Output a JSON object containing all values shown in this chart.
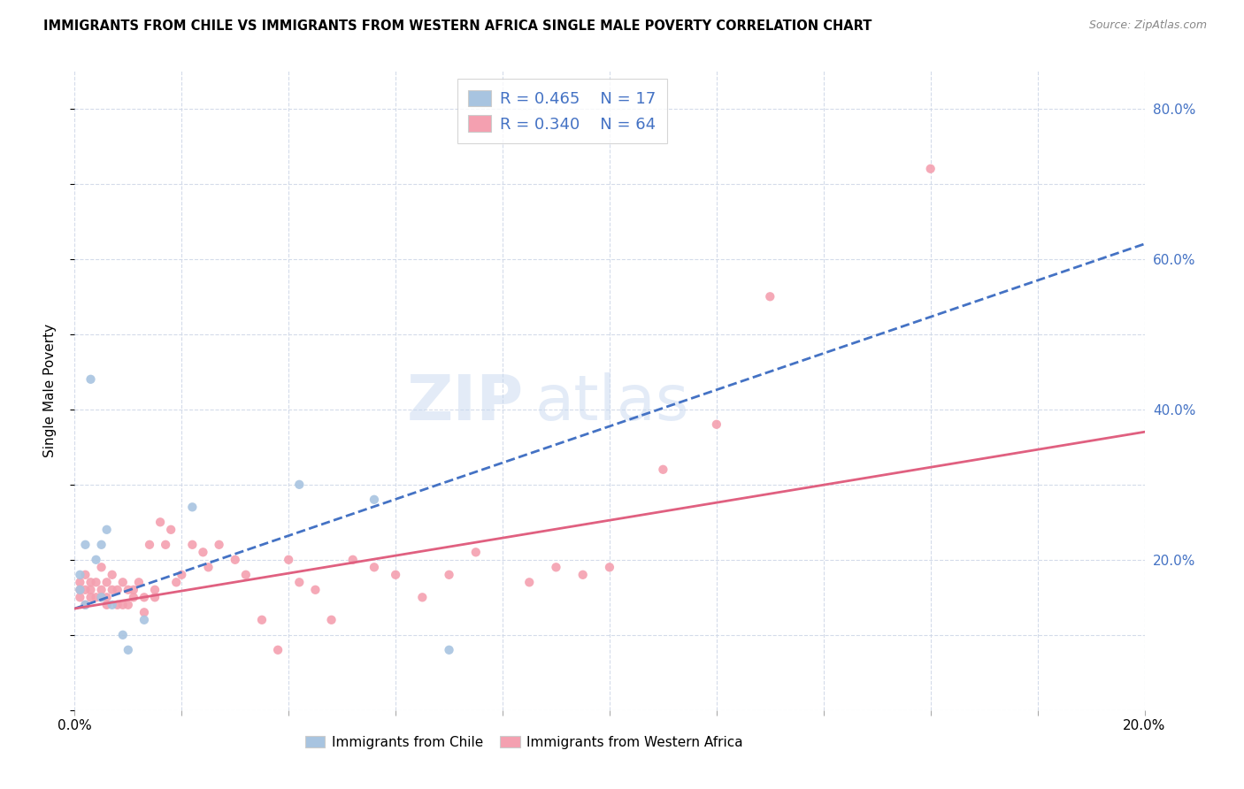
{
  "title": "IMMIGRANTS FROM CHILE VS IMMIGRANTS FROM WESTERN AFRICA SINGLE MALE POVERTY CORRELATION CHART",
  "source": "Source: ZipAtlas.com",
  "ylabel": "Single Male Poverty",
  "xlim": [
    0.0,
    0.2
  ],
  "ylim": [
    0.0,
    0.85
  ],
  "xticks": [
    0.0,
    0.02,
    0.04,
    0.06,
    0.08,
    0.1,
    0.12,
    0.14,
    0.16,
    0.18,
    0.2
  ],
  "xticklabels": [
    "0.0%",
    "",
    "",
    "",
    "",
    "",
    "",
    "",
    "",
    "",
    "20.0%"
  ],
  "yticks": [
    0.0,
    0.1,
    0.2,
    0.3,
    0.4,
    0.5,
    0.6,
    0.7,
    0.8
  ],
  "yticklabels": [
    "",
    "",
    "20.0%",
    "",
    "40.0%",
    "",
    "60.0%",
    "",
    "80.0%"
  ],
  "chile_R": 0.465,
  "chile_N": 17,
  "africa_R": 0.34,
  "africa_N": 64,
  "chile_color": "#a8c4e0",
  "chile_line_color": "#4472c4",
  "africa_color": "#f4a0b0",
  "africa_line_color": "#e06080",
  "right_axis_color": "#4472c4",
  "chile_points_x": [
    0.001,
    0.001,
    0.002,
    0.002,
    0.003,
    0.004,
    0.005,
    0.005,
    0.006,
    0.007,
    0.009,
    0.01,
    0.013,
    0.022,
    0.042,
    0.056,
    0.07
  ],
  "chile_points_y": [
    0.16,
    0.18,
    0.14,
    0.22,
    0.44,
    0.2,
    0.22,
    0.15,
    0.24,
    0.14,
    0.1,
    0.08,
    0.12,
    0.27,
    0.3,
    0.28,
    0.08
  ],
  "africa_points_x": [
    0.001,
    0.001,
    0.001,
    0.002,
    0.002,
    0.002,
    0.003,
    0.003,
    0.003,
    0.004,
    0.004,
    0.005,
    0.005,
    0.005,
    0.006,
    0.006,
    0.006,
    0.007,
    0.007,
    0.008,
    0.008,
    0.009,
    0.009,
    0.01,
    0.01,
    0.011,
    0.011,
    0.012,
    0.013,
    0.013,
    0.014,
    0.015,
    0.015,
    0.016,
    0.017,
    0.018,
    0.019,
    0.02,
    0.022,
    0.024,
    0.025,
    0.027,
    0.03,
    0.032,
    0.035,
    0.038,
    0.04,
    0.042,
    0.045,
    0.048,
    0.052,
    0.056,
    0.06,
    0.065,
    0.07,
    0.075,
    0.085,
    0.09,
    0.095,
    0.1,
    0.11,
    0.12,
    0.13,
    0.16
  ],
  "africa_points_y": [
    0.15,
    0.17,
    0.16,
    0.14,
    0.18,
    0.16,
    0.16,
    0.17,
    0.15,
    0.15,
    0.17,
    0.15,
    0.16,
    0.19,
    0.15,
    0.17,
    0.14,
    0.16,
    0.18,
    0.16,
    0.14,
    0.17,
    0.14,
    0.14,
    0.16,
    0.15,
    0.16,
    0.17,
    0.13,
    0.15,
    0.22,
    0.16,
    0.15,
    0.25,
    0.22,
    0.24,
    0.17,
    0.18,
    0.22,
    0.21,
    0.19,
    0.22,
    0.2,
    0.18,
    0.12,
    0.08,
    0.2,
    0.17,
    0.16,
    0.12,
    0.2,
    0.19,
    0.18,
    0.15,
    0.18,
    0.21,
    0.17,
    0.19,
    0.18,
    0.19,
    0.32,
    0.38,
    0.55,
    0.72
  ],
  "chile_trend_x": [
    0.0,
    0.2
  ],
  "chile_trend_y": [
    0.135,
    0.62
  ],
  "africa_trend_x": [
    0.0,
    0.2
  ],
  "africa_trend_y": [
    0.135,
    0.37
  ]
}
